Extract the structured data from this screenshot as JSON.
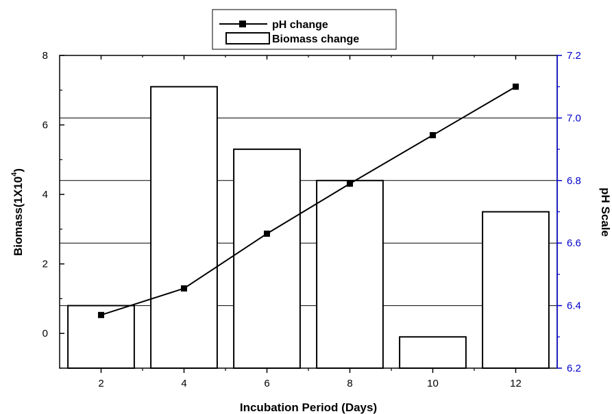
{
  "chart_data": {
    "type": "bar+line",
    "xlabel": "Incubation Period (Days)",
    "ylabel_left": "Biomass(1X10",
    "ylabel_left_sup": "4",
    "ylabel_left_close": ")",
    "ylabel_right": "pH Scale",
    "x_ticks": [
      2,
      4,
      6,
      8,
      10,
      12
    ],
    "xlim": [
      1,
      13
    ],
    "ylim_left": [
      -1,
      8
    ],
    "ylim_right": [
      6.2,
      7.2
    ],
    "y_ticks_left": [
      0,
      2,
      4,
      6,
      8
    ],
    "y_ticks_right": [
      "6.2",
      "6.4",
      "6.6",
      "6.8",
      "7.0",
      "7.2"
    ],
    "legend_position": "top-center",
    "right_axis_color": "#0000cc",
    "grid": "horizontal lines at right-axis major ticks",
    "series": [
      {
        "name": "pH change",
        "kind": "line",
        "axis": "right",
        "x": [
          2,
          4,
          6,
          8,
          10,
          12
        ],
        "values": [
          6.37,
          6.455,
          6.63,
          6.79,
          6.945,
          7.1
        ]
      },
      {
        "name": "Biomass change",
        "kind": "bar",
        "axis": "left",
        "x": [
          2,
          4,
          6,
          8,
          10,
          12
        ],
        "values": [
          0.8,
          7.1,
          5.3,
          4.4,
          -0.1,
          3.5
        ]
      }
    ]
  }
}
